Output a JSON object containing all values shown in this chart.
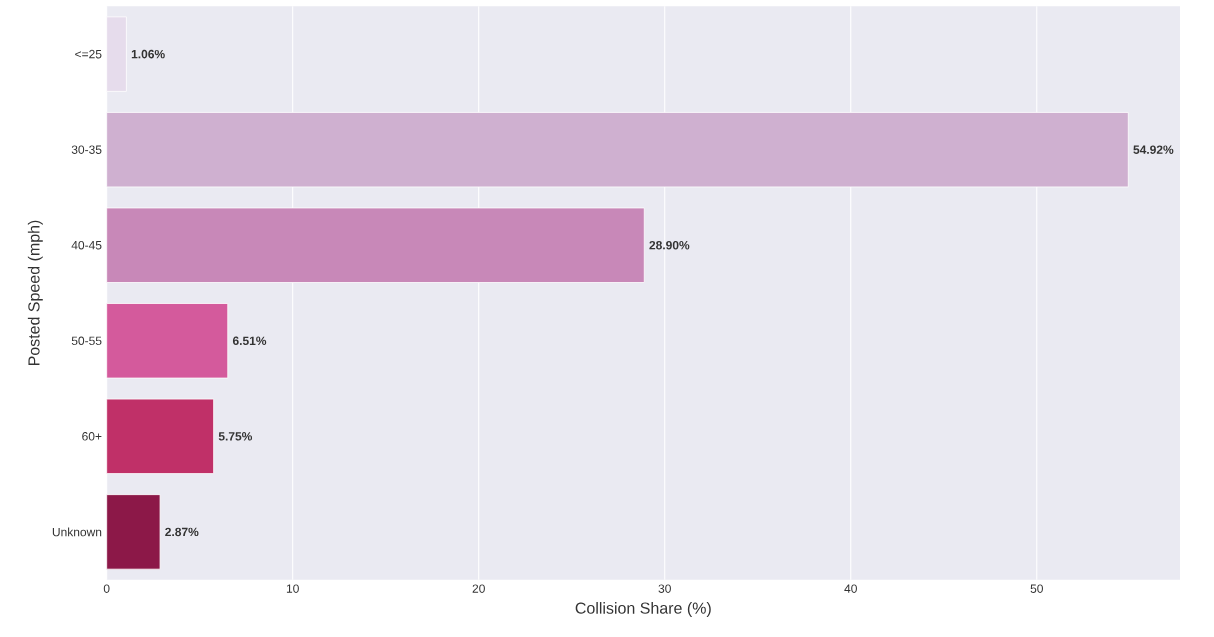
{
  "chart_data": {
    "type": "bar",
    "orientation": "horizontal",
    "xlabel": "Collision Share (%)",
    "ylabel": "Posted Speed (mph)",
    "categories": [
      "<=25",
      "30-35",
      "40-45",
      "50-55",
      "60+",
      "Unknown"
    ],
    "values": [
      1.06,
      54.92,
      28.9,
      6.51,
      5.75,
      2.87
    ],
    "value_labels": [
      "1.06%",
      "54.92%",
      "28.90%",
      "6.51%",
      "5.75%",
      "2.87%"
    ],
    "colors": [
      "#e6dcec",
      "#cfb0d0",
      "#c888b8",
      "#d45a9c",
      "#c03068",
      "#8c1848"
    ],
    "xlim": [
      0,
      57.7
    ],
    "xticks": [
      0,
      10,
      20,
      30,
      40,
      50
    ],
    "grid": "x"
  }
}
